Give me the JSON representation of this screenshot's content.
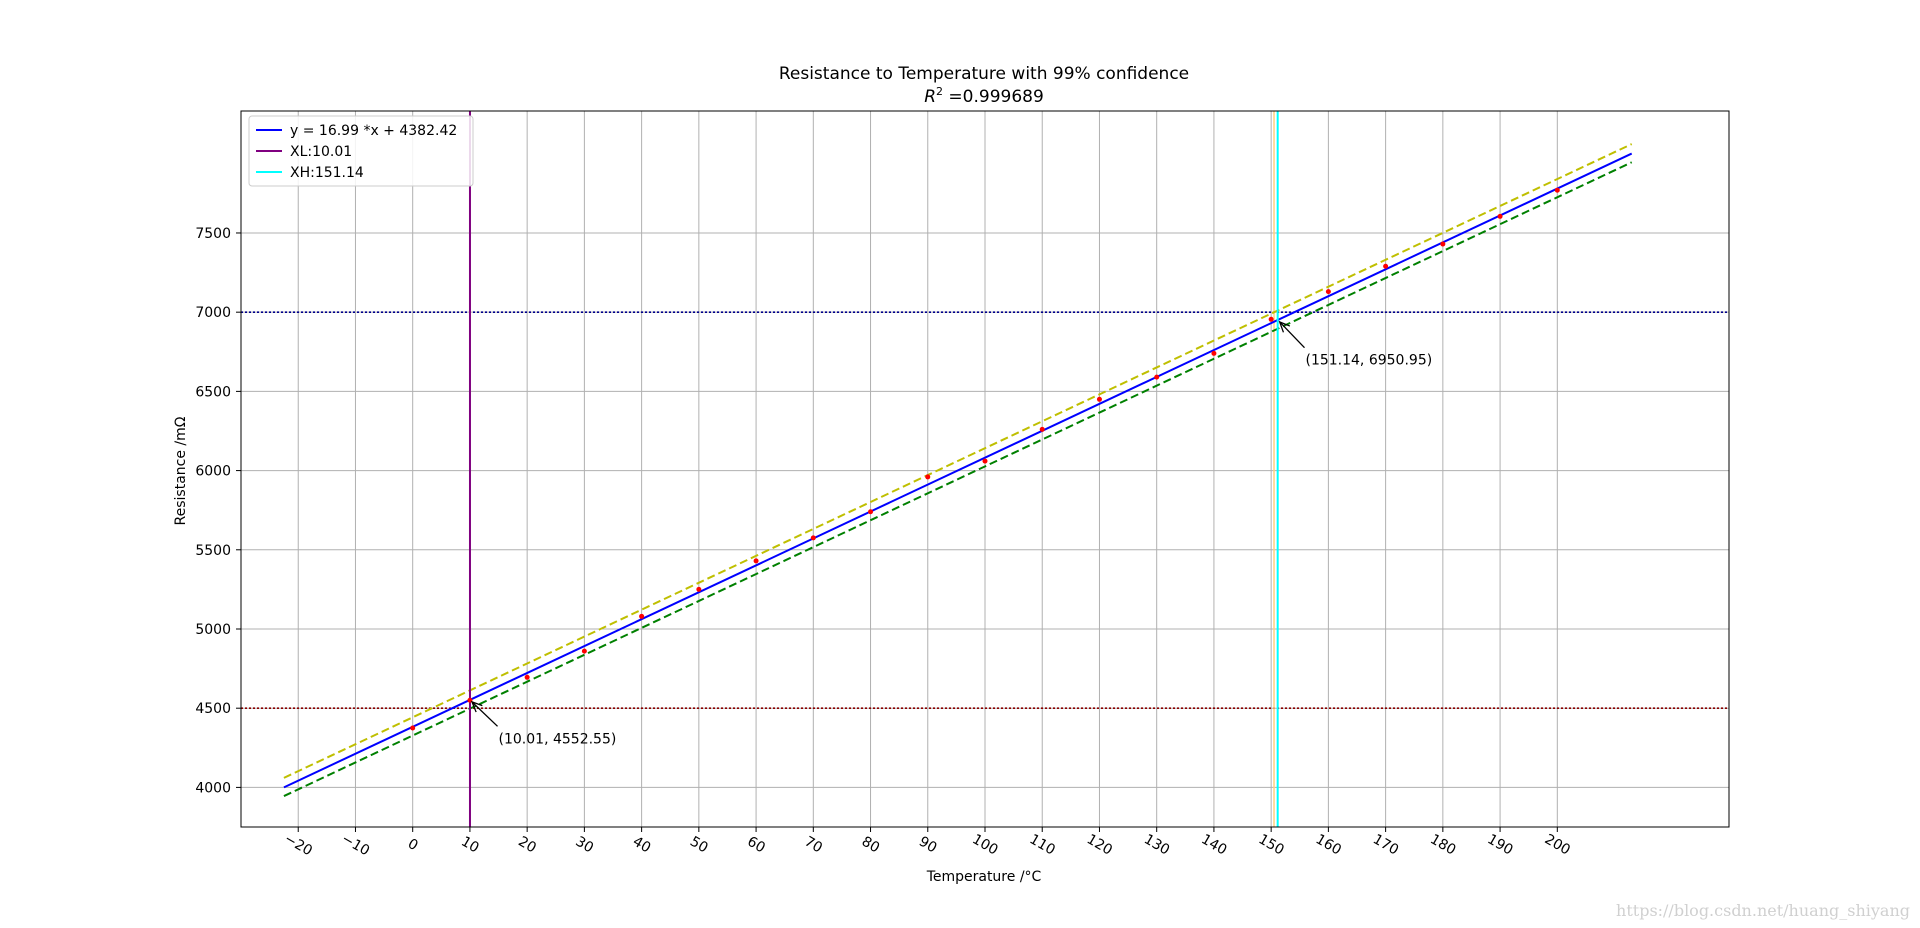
{
  "chart_data": {
    "type": "scatter",
    "title": "Resistance to Temperature with 99% confidence",
    "subtitle_prefix": "R",
    "subtitle_sup": "2",
    "subtitle_value": " =0.999689",
    "xlabel": "Temperature /°C",
    "ylabel": "Resistance /mΩ",
    "xlim": [
      -30,
      230
    ],
    "ylim": [
      3750,
      8270
    ],
    "x_ticks": [
      -20,
      -10,
      0,
      10,
      20,
      30,
      40,
      50,
      60,
      70,
      80,
      90,
      100,
      110,
      120,
      130,
      140,
      150,
      160,
      170,
      180,
      190,
      200
    ],
    "x_tick_labels": [
      "−20",
      "−10",
      "0",
      "10",
      "20",
      "30",
      "40",
      "50",
      "60",
      "70",
      "80",
      "90",
      "100",
      "110",
      "120",
      "130",
      "140",
      "150",
      "160",
      "170",
      "180",
      "190",
      "200"
    ],
    "y_ticks": [
      4000,
      4500,
      5000,
      5500,
      6000,
      6500,
      7000,
      7500
    ],
    "grid": true,
    "legend_position": "top-left",
    "fit": {
      "label": "y = 16.99 *x  + 4382.42",
      "slope": 16.99,
      "intercept": 4382.42,
      "x_range": [
        -22.5,
        213
      ],
      "color": "#0000ff"
    },
    "upper_band": {
      "offset": 60,
      "color": "#bfbf00"
    },
    "lower_band": {
      "offset": -55,
      "color": "#008000"
    },
    "points": {
      "color": "#ff0000",
      "x": [
        0,
        10,
        20,
        30,
        40,
        50,
        60,
        70,
        80,
        90,
        100,
        110,
        120,
        130,
        140,
        150,
        160,
        170,
        180,
        190,
        200
      ],
      "y": [
        4375,
        4550,
        4695,
        4860,
        5080,
        5250,
        5430,
        5575,
        5740,
        5960,
        6060,
        6260,
        6450,
        6590,
        6740,
        6955,
        7130,
        7290,
        7430,
        7605,
        7770
      ]
    },
    "hlines": [
      {
        "y": 7000,
        "color": "#00008b",
        "style": "dotted"
      },
      {
        "y": 4500,
        "color": "#8b0000",
        "style": "dotted"
      }
    ],
    "vlines": [
      {
        "label": "XL:10.01",
        "x": 10.01,
        "color": "#800080"
      },
      {
        "label": "XH:151.14",
        "x": 151.14,
        "color": "#00ffff"
      }
    ],
    "shadow_vline": {
      "x": 150.5,
      "color": "#ffd280"
    },
    "annotations": [
      {
        "text": "(10.01, 4552.55)",
        "x": 10.01,
        "y": 4552.55,
        "text_x": 15,
        "text_y": 4310
      },
      {
        "text": "(151.14, 6950.95)",
        "x": 151.14,
        "y": 6950.95,
        "text_x": 156,
        "text_y": 6700
      }
    ]
  },
  "watermark": "https://blog.csdn.net/huang_shiyang"
}
